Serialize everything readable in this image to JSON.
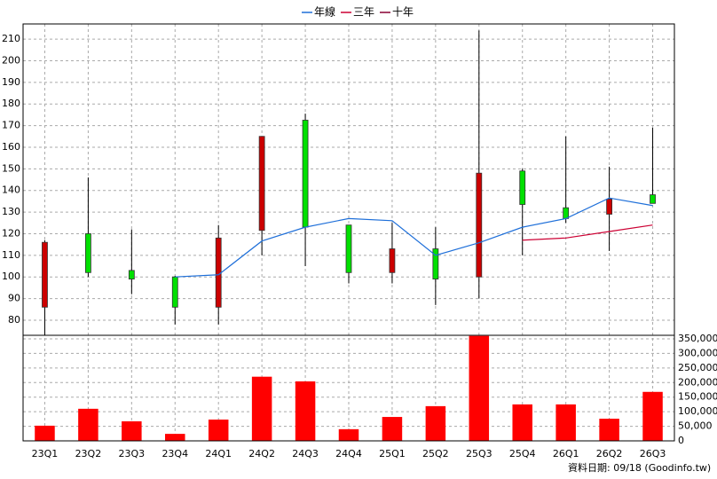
{
  "chart_data": {
    "type": "candlestick",
    "legend": [
      "年線",
      "三年",
      "十年"
    ],
    "categories": [
      "23Q1",
      "23Q2",
      "23Q3",
      "23Q4",
      "24Q1",
      "24Q2",
      "24Q3",
      "24Q4",
      "25Q1",
      "25Q2",
      "25Q3",
      "25Q4",
      "26Q1",
      "26Q2",
      "26Q3"
    ],
    "open": [
      86,
      120,
      103,
      100,
      86,
      121.5,
      172.5,
      124,
      102,
      113,
      100,
      149,
      132,
      129,
      138
    ],
    "close": [
      116,
      102,
      99,
      86,
      118,
      165,
      123,
      102,
      113,
      99,
      148,
      133.5,
      127,
      136,
      134
    ],
    "high": [
      117,
      146,
      122,
      100.5,
      124,
      165,
      175.5,
      124,
      125,
      123,
      214,
      150,
      165,
      151,
      169
    ],
    "low": [
      73,
      100,
      92,
      78,
      78,
      110,
      105,
      97,
      97,
      87,
      90,
      110,
      125,
      112,
      134
    ],
    "up_color": "#cc0000",
    "down_color": "#00e000",
    "lines": [
      {
        "name": "年線",
        "color": "#1e6fd9",
        "values": [
          null,
          null,
          null,
          100,
          101,
          116.6,
          123,
          127,
          126,
          110,
          115.8,
          123,
          127,
          136.5,
          133
        ]
      },
      {
        "name": "三年",
        "color": "#cc0033",
        "values": [
          null,
          null,
          null,
          null,
          null,
          null,
          null,
          null,
          null,
          null,
          null,
          117,
          118,
          121,
          124
        ]
      },
      {
        "name": "十年",
        "color": "#880033",
        "values": [
          null,
          null,
          null,
          null,
          null,
          null,
          null,
          null,
          null,
          null,
          null,
          null,
          null,
          null,
          null
        ]
      }
    ],
    "ylim": [
      73,
      217
    ],
    "yticks": [
      80,
      90,
      100,
      110,
      120,
      130,
      140,
      150,
      160,
      170,
      180,
      190,
      200,
      210
    ],
    "volume": {
      "type": "bar",
      "color": "#ff0000",
      "values": [
        52000,
        110000,
        67000,
        24000,
        73000,
        220000,
        204000,
        40000,
        82000,
        119000,
        360000,
        125000,
        125000,
        76000,
        168000
      ],
      "ylim": [
        0,
        362000
      ],
      "yticks": [
        0,
        {
          "value": 50000,
          "label": "50,000"
        },
        {
          "value": 100000,
          "label": "100,000"
        },
        {
          "value": 150000,
          "label": "150,000"
        },
        {
          "value": 200000,
          "label": "200,000"
        },
        {
          "value": 250000,
          "label": "250,000"
        },
        {
          "value": 300000,
          "label": "300,000"
        },
        {
          "value": 350000,
          "label": "350,000"
        }
      ]
    },
    "grid": true,
    "footer": "資料日期: 09/18  (Goodinfo.tw)"
  }
}
